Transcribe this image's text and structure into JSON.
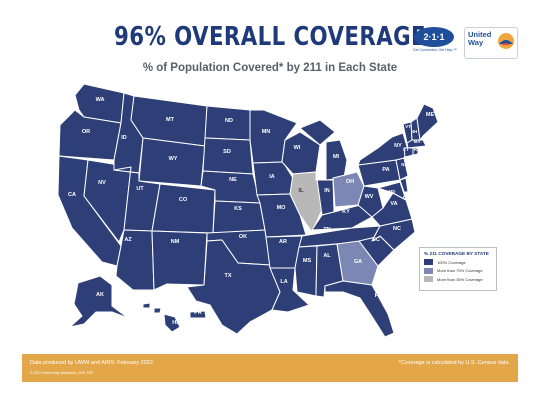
{
  "header": {
    "title": "96% OVERALL COVERAGE",
    "subtitle": "% of Population Covered* by 211 in Each State"
  },
  "logos": {
    "logo_211_text": "2·1·1",
    "logo_211_tagline": "Get Connected. Get Help.™",
    "logo_uw_text_1": "United",
    "logo_uw_text_2": "Way"
  },
  "map": {
    "colors": {
      "full": "#2e3f78",
      "over75": "#7d87b3",
      "over35": "#b8b8b8",
      "border": "#ffffff"
    },
    "state_labels": [
      "WA",
      "OR",
      "CA",
      "NV",
      "ID",
      "MT",
      "WY",
      "UT",
      "AZ",
      "CO",
      "NM",
      "ND",
      "SD",
      "NE",
      "KS",
      "OK",
      "TX",
      "MN",
      "IA",
      "MO",
      "AR",
      "LA",
      "WI",
      "IL",
      "MI",
      "IN",
      "OH",
      "KY",
      "TN",
      "MS",
      "AL",
      "GA",
      "FL",
      "SC",
      "NC",
      "VA",
      "WV",
      "PA",
      "NY",
      "VT",
      "NH",
      "ME",
      "MA",
      "CT",
      "RI",
      "NJ",
      "DE",
      "MD",
      "DC",
      "AK",
      "HI",
      "PR"
    ],
    "over75_states": [
      "OH",
      "GA"
    ],
    "over35_states": [
      "IL"
    ]
  },
  "legend": {
    "title": "% 211 COVERAGE BY STATE",
    "items": [
      {
        "label": "100% Coverage",
        "color": "#2e3f78"
      },
      {
        "label": "More than 75% Coverage",
        "color": "#7d87b3"
      },
      {
        "label": "More than 35% Coverage",
        "color": "#b8b8b8"
      }
    ]
  },
  "footer": {
    "left": "Data produced by UWW and AIRS: February 2022",
    "right": "*Coverage is calculated by U.S. Census data.",
    "copyright": "© 2022 United Way Worldwide  |  USE PDF"
  }
}
